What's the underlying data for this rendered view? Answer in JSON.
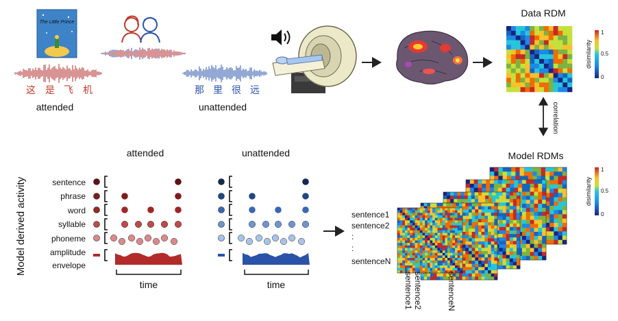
{
  "audio": {
    "book_title": "The Little Prince",
    "attended_chars": [
      "这",
      "是",
      "飞",
      "机"
    ],
    "unattended_chars": [
      "那",
      "里",
      "很",
      "远"
    ],
    "attended_label": "attended",
    "unattended_label": "unattended"
  },
  "data_rdm": {
    "title": "Data RDM",
    "colorbar_label": "disimilarity",
    "ticks": [
      "1",
      "0.5",
      "0"
    ]
  },
  "correlation_label": "correlation",
  "model_rdms": {
    "title": "Model RDMs",
    "colorbar_label": "disimilarity",
    "ticks": [
      "1",
      "0.5",
      "0"
    ],
    "row_labels": [
      "sentence1",
      "sentence2",
      ":",
      ":",
      "sentenceN"
    ],
    "col_labels": [
      "sentence1",
      "sentence2",
      ":",
      "sentenceN"
    ]
  },
  "model_activity": {
    "y_axis_label": "Model derived activity",
    "levels": [
      "sentence",
      "phrase",
      "word",
      "syllable",
      "phoneme",
      "amplitude",
      "envelope"
    ],
    "attended_title": "attended",
    "unattended_title": "unattended",
    "time_label": "time"
  },
  "colors": {
    "attended_red": "#b22a2a",
    "unattended_blue": "#2a52a8",
    "attended_dots": [
      "#5e1414",
      "#7e1d1d",
      "#9c2727",
      "#bd4a4a",
      "#d98a8a"
    ],
    "unattended_dots": [
      "#14294e",
      "#1f4785",
      "#3a67b0",
      "#6f95cc",
      "#a9c3e6"
    ]
  }
}
